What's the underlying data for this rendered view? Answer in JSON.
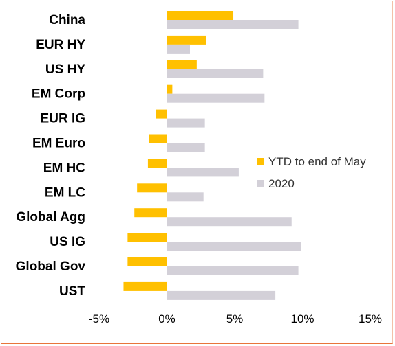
{
  "chart_data": {
    "type": "bar",
    "orientation": "horizontal",
    "categories": [
      "China",
      "EUR HY",
      "US HY",
      "EM Corp",
      "EUR IG",
      "EM Euro",
      "EM HC",
      "EM LC",
      "Global Agg",
      "US IG",
      "Global Gov",
      "UST"
    ],
    "series": [
      {
        "name": "YTD to end of May",
        "color": "#ffc000",
        "values": [
          4.9,
          2.9,
          2.2,
          0.4,
          -0.8,
          -1.3,
          -1.4,
          -2.2,
          -2.4,
          -2.9,
          -2.9,
          -3.2
        ]
      },
      {
        "name": "2020",
        "color": "#d3d0d8",
        "values": [
          9.7,
          1.7,
          7.1,
          7.2,
          2.8,
          2.8,
          5.3,
          2.7,
          9.2,
          9.9,
          9.7,
          8.0
        ]
      }
    ],
    "xlim": [
      -5,
      15
    ],
    "xticks": [
      -5,
      0,
      5,
      10,
      15
    ],
    "xtick_labels": [
      "-5%",
      "0%",
      "5%",
      "10%",
      "15%"
    ],
    "grid": false,
    "legend_position": "right"
  }
}
